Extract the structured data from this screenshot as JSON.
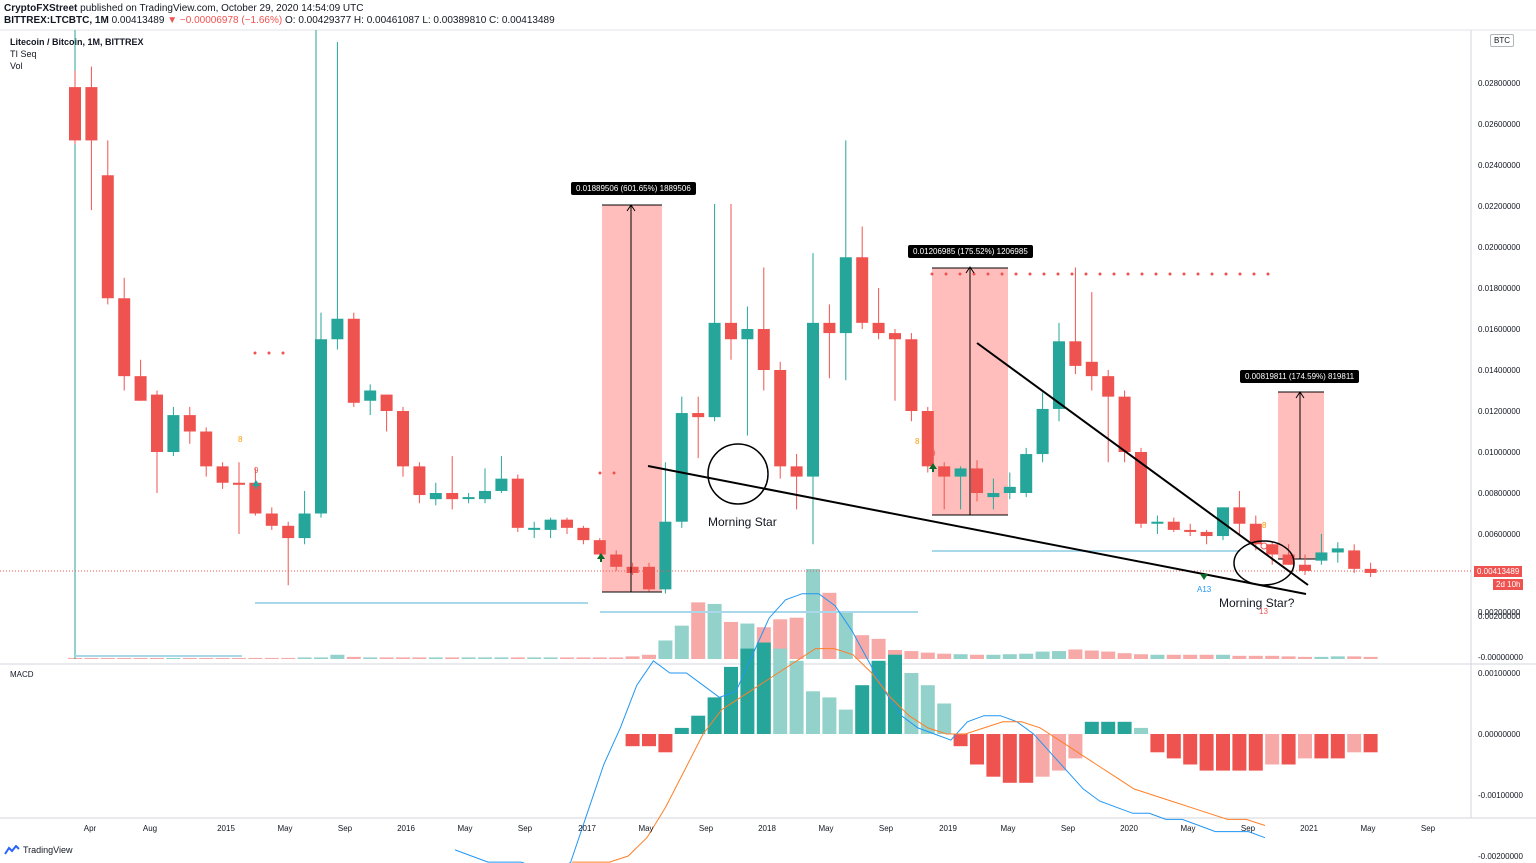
{
  "header": {
    "author": "CryptoFXStreet",
    "published": "published on TradingView.com, October 29, 2020 14:54:09 UTC",
    "symbol_line": "BITTREX:LTCBTC, 1M",
    "last": "0.00413489",
    "change": "▼ −0.00006978 (−1.66%)",
    "ohlc": "O: 0.00429377  H: 0.00461087  L: 0.00389810  C: 0.00413489"
  },
  "legend": {
    "title": "Litecoin / Bitcoin, 1M, BITTREX",
    "study1": "TI Seq",
    "study2": "Vol"
  },
  "macd_label": "MACD",
  "currency_badge": "BTC",
  "price_tag": "0.00413489",
  "time_tag": "2d 10h",
  "logo_text": "TradingView",
  "annotations": {
    "morning_star_1": "Morning Star",
    "morning_star_2": "Morning Star?",
    "box1": "0.01889506 (601.65%) 1889506",
    "box2": "0.01206985 (175.52%) 1206985",
    "box3": "0.00819811 (174.59%) 819811",
    "seq_9a": "9",
    "seq_9b": "9",
    "seq_9c": "9",
    "a13": "A13",
    "seq_13": "13"
  },
  "colors": {
    "up": "#26a69a",
    "down": "#ef5350",
    "up_vol": "#93d2cb",
    "down_vol": "#f7a9a7",
    "macd_line": "#2196f3",
    "signal_line": "#ff7f27",
    "range_fill": "#ffb3b0"
  },
  "chart_data": {
    "type": "candlestick",
    "title": "Litecoin / Bitcoin, 1M, BITTREX",
    "y_axis_labels": [
      "0.02800000",
      "0.02600000",
      "0.02400000",
      "0.02200000",
      "0.02000000",
      "0.01800000",
      "0.01600000",
      "0.01400000",
      "0.01200000",
      "0.01000000",
      "0.00800000",
      "0.00600000",
      "0.00200000",
      "-0.00000000"
    ],
    "macd_axis_labels": [
      "0.00200000",
      "0.00100000",
      "0.00000000",
      "-0.00100000",
      "-0.00200000"
    ],
    "time_labels": [
      "Apr",
      "Aug",
      "2015",
      "May",
      "Sep",
      "2016",
      "May",
      "Sep",
      "2017",
      "May",
      "Sep",
      "2018",
      "May",
      "Sep",
      "2019",
      "May",
      "Sep",
      "2020",
      "May",
      "Sep",
      "2021",
      "May",
      "Sep"
    ],
    "candles": [
      [
        0.0278,
        0.0252,
        0.0286,
        0.025
      ],
      [
        0.0278,
        0.0252,
        0.0288,
        0.0218
      ],
      [
        0.0235,
        0.0175,
        0.0252,
        0.0172
      ],
      [
        0.0175,
        0.0137,
        0.0185,
        0.013
      ],
      [
        0.0137,
        0.0125,
        0.0145,
        0.0125
      ],
      [
        0.0128,
        0.01,
        0.013,
        0.008
      ],
      [
        0.01,
        0.0118,
        0.0122,
        0.0098
      ],
      [
        0.0118,
        0.011,
        0.0122,
        0.0104
      ],
      [
        0.011,
        0.0093,
        0.0112,
        0.0088
      ],
      [
        0.0093,
        0.0085,
        0.0095,
        0.0082
      ],
      [
        0.0085,
        0.0084,
        0.0095,
        0.006
      ],
      [
        0.0085,
        0.007,
        0.0092,
        0.0069
      ],
      [
        0.007,
        0.0064,
        0.0073,
        0.0062
      ],
      [
        0.0064,
        0.0058,
        0.0066,
        0.0035
      ],
      [
        0.0058,
        0.007,
        0.0081,
        0.0055
      ],
      [
        0.007,
        0.0155,
        0.0168,
        0.0068
      ],
      [
        0.0155,
        0.0165,
        0.03,
        0.015
      ],
      [
        0.0165,
        0.0124,
        0.0168,
        0.0122
      ],
      [
        0.0125,
        0.013,
        0.0133,
        0.0118
      ],
      [
        0.0128,
        0.012,
        0.0128,
        0.011
      ],
      [
        0.012,
        0.0093,
        0.0122,
        0.0088
      ],
      [
        0.0093,
        0.0079,
        0.0095,
        0.0075
      ],
      [
        0.0077,
        0.008,
        0.0085,
        0.0074
      ],
      [
        0.008,
        0.0077,
        0.0098,
        0.0072
      ],
      [
        0.0078,
        0.0078,
        0.008,
        0.0075
      ],
      [
        0.0077,
        0.0081,
        0.0092,
        0.0075
      ],
      [
        0.0081,
        0.0087,
        0.0098,
        0.008
      ],
      [
        0.0087,
        0.0063,
        0.0089,
        0.0061
      ],
      [
        0.0063,
        0.0063,
        0.0066,
        0.0058
      ],
      [
        0.0062,
        0.0067,
        0.0068,
        0.0058
      ],
      [
        0.0067,
        0.0063,
        0.0068,
        0.006
      ],
      [
        0.0063,
        0.0057,
        0.0064,
        0.0055
      ],
      [
        0.0057,
        0.005,
        0.0058,
        0.0048
      ],
      [
        0.005,
        0.0044,
        0.0052,
        0.0042
      ],
      [
        0.0044,
        0.0041,
        0.0046,
        0.004
      ],
      [
        0.0044,
        0.0033,
        0.0046,
        0.0032
      ],
      [
        0.0033,
        0.0066,
        0.0095,
        0.0031
      ],
      [
        0.0066,
        0.0119,
        0.0127,
        0.0063
      ],
      [
        0.0119,
        0.0117,
        0.0127,
        0.0097
      ],
      [
        0.0117,
        0.0163,
        0.0221,
        0.0115
      ],
      [
        0.0163,
        0.0155,
        0.0221,
        0.0145
      ],
      [
        0.0155,
        0.016,
        0.0171,
        0.0108
      ],
      [
        0.016,
        0.014,
        0.019,
        0.013
      ],
      [
        0.014,
        0.0093,
        0.0144,
        0.0087
      ],
      [
        0.0093,
        0.0088,
        0.0099,
        0.0072
      ],
      [
        0.0088,
        0.0163,
        0.0197,
        0.0055
      ],
      [
        0.0163,
        0.0158,
        0.0172,
        0.0136
      ],
      [
        0.0158,
        0.0195,
        0.0252,
        0.0135
      ],
      [
        0.0195,
        0.0163,
        0.021,
        0.016
      ],
      [
        0.0163,
        0.0158,
        0.018,
        0.0155
      ],
      [
        0.0158,
        0.0155,
        0.016,
        0.0125
      ],
      [
        0.0155,
        0.012,
        0.0158,
        0.0115
      ],
      [
        0.012,
        0.0093,
        0.0122,
        0.009
      ],
      [
        0.0093,
        0.0088,
        0.0095,
        0.0072
      ],
      [
        0.0088,
        0.0092,
        0.0093,
        0.0072
      ],
      [
        0.0092,
        0.008,
        0.0096,
        0.0076
      ],
      [
        0.0078,
        0.008,
        0.0087,
        0.0072
      ],
      [
        0.008,
        0.0083,
        0.009,
        0.0077
      ],
      [
        0.008,
        0.0099,
        0.0102,
        0.0078
      ],
      [
        0.0099,
        0.0121,
        0.0129,
        0.0095
      ],
      [
        0.0121,
        0.0154,
        0.0163,
        0.0115
      ],
      [
        0.0154,
        0.0142,
        0.019,
        0.0138
      ],
      [
        0.0144,
        0.0137,
        0.0178,
        0.013
      ],
      [
        0.0137,
        0.0127,
        0.014,
        0.0095
      ],
      [
        0.0127,
        0.01,
        0.013,
        0.0095
      ],
      [
        0.01,
        0.0065,
        0.0102,
        0.0063
      ],
      [
        0.0065,
        0.0066,
        0.0069,
        0.006
      ],
      [
        0.0066,
        0.0062,
        0.0068,
        0.0061
      ],
      [
        0.0062,
        0.0061,
        0.0065,
        0.0059
      ],
      [
        0.0061,
        0.0059,
        0.0062,
        0.0055
      ],
      [
        0.0059,
        0.0073,
        0.0073,
        0.0057
      ],
      [
        0.0073,
        0.0065,
        0.0081,
        0.006
      ],
      [
        0.0065,
        0.0055,
        0.0069,
        0.0052
      ],
      [
        0.0055,
        0.005,
        0.0056,
        0.0045
      ],
      [
        0.005,
        0.0045,
        0.0055,
        0.0045
      ],
      [
        0.0045,
        0.0042,
        0.005,
        0.004
      ],
      [
        0.0047,
        0.0051,
        0.006,
        0.0045
      ],
      [
        0.0051,
        0.0053,
        0.0056,
        0.0046
      ],
      [
        0.0052,
        0.0043,
        0.0055,
        0.0041
      ],
      [
        0.0043,
        0.0041,
        0.0046,
        0.0039
      ]
    ],
    "volume": [
      2,
      2,
      2,
      2,
      2,
      2,
      2,
      2,
      2,
      2,
      2,
      2,
      2,
      2,
      3,
      3,
      8,
      4,
      3,
      3,
      3,
      3,
      3,
      3,
      3,
      3,
      3,
      3,
      3,
      3,
      3,
      3,
      3,
      3,
      5,
      8,
      35,
      63,
      107,
      104,
      70,
      67,
      60,
      75,
      78,
      170,
      125,
      87,
      45,
      38,
      17,
      15,
      12,
      10,
      9,
      8,
      8,
      9,
      10,
      14,
      15,
      18,
      16,
      14,
      11,
      9,
      8,
      8,
      8,
      8,
      8,
      6,
      6,
      6,
      5,
      4,
      4,
      5,
      5,
      4
    ],
    "macd_hist": [
      0,
      0,
      0,
      0,
      0,
      0,
      0,
      0,
      0,
      0,
      0,
      0,
      0,
      0,
      0,
      0,
      0,
      0,
      0,
      0,
      0,
      0,
      0,
      0,
      0,
      0,
      0,
      0,
      0,
      0,
      0,
      0,
      0,
      0,
      -0.0002,
      -0.0002,
      -0.0003,
      0.0001,
      0.0003,
      0.0006,
      0.0011,
      0.0014,
      0.0015,
      0.0014,
      0.0012,
      0.0007,
      0.0006,
      0.0004,
      0.0008,
      0.0012,
      0.0013,
      0.001,
      0.0008,
      0.0005,
      -0.0002,
      -0.0005,
      -0.0007,
      -0.0008,
      -0.0008,
      -0.0007,
      -0.0006,
      -0.0004,
      0.0002,
      0.0002,
      0.0002,
      0.0001,
      -0.0003,
      -0.0004,
      -0.0005,
      -0.0006,
      -0.0006,
      -0.0006,
      -0.0006,
      -0.0005,
      -0.0005,
      -0.0004,
      -0.0004,
      -0.0004,
      -0.0003,
      -0.0003
    ],
    "macd_line": [
      -0.0019,
      -0.002,
      -0.0021,
      -0.0021,
      -0.0021,
      -0.0022,
      -0.0023,
      -0.0021,
      -0.0013,
      -0.0005,
      0.0001,
      0.0008,
      0.0012,
      0.001,
      0.001,
      0.0008,
      0.0006,
      0.0007,
      0.0013,
      0.0019,
      0.0022,
      0.0023,
      0.0023,
      0.0021,
      0.0017,
      0.0012,
      0.0007,
      0.0003,
      0.0001,
      0.0,
      -0.0001,
      0.0002,
      0.0003,
      0.0003,
      0.0002,
      0.0,
      -0.0003,
      -0.0006,
      -0.0009,
      -0.0011,
      -0.0012,
      -0.0013,
      -0.0013,
      -0.0014,
      -0.0014,
      -0.0015,
      -0.0016,
      -0.0016,
      -0.0016,
      -0.0017
    ],
    "signal_line": [
      -0.0021,
      -0.0021,
      -0.0021,
      -0.002,
      -0.0017,
      -0.0012,
      -0.0006,
      0.0,
      0.0004,
      0.0006,
      0.0008,
      0.001,
      0.0012,
      0.0014,
      0.0014,
      0.0013,
      0.001,
      0.0006,
      0.0003,
      0.0001,
      0.0,
      0.0,
      0.0001,
      0.0002,
      0.0002,
      0.0001,
      -0.0001,
      -0.0003,
      -0.0005,
      -0.0007,
      -0.0009,
      -0.001,
      -0.0011,
      -0.0012,
      -0.0013,
      -0.0014,
      -0.0014,
      -0.0015
    ]
  }
}
